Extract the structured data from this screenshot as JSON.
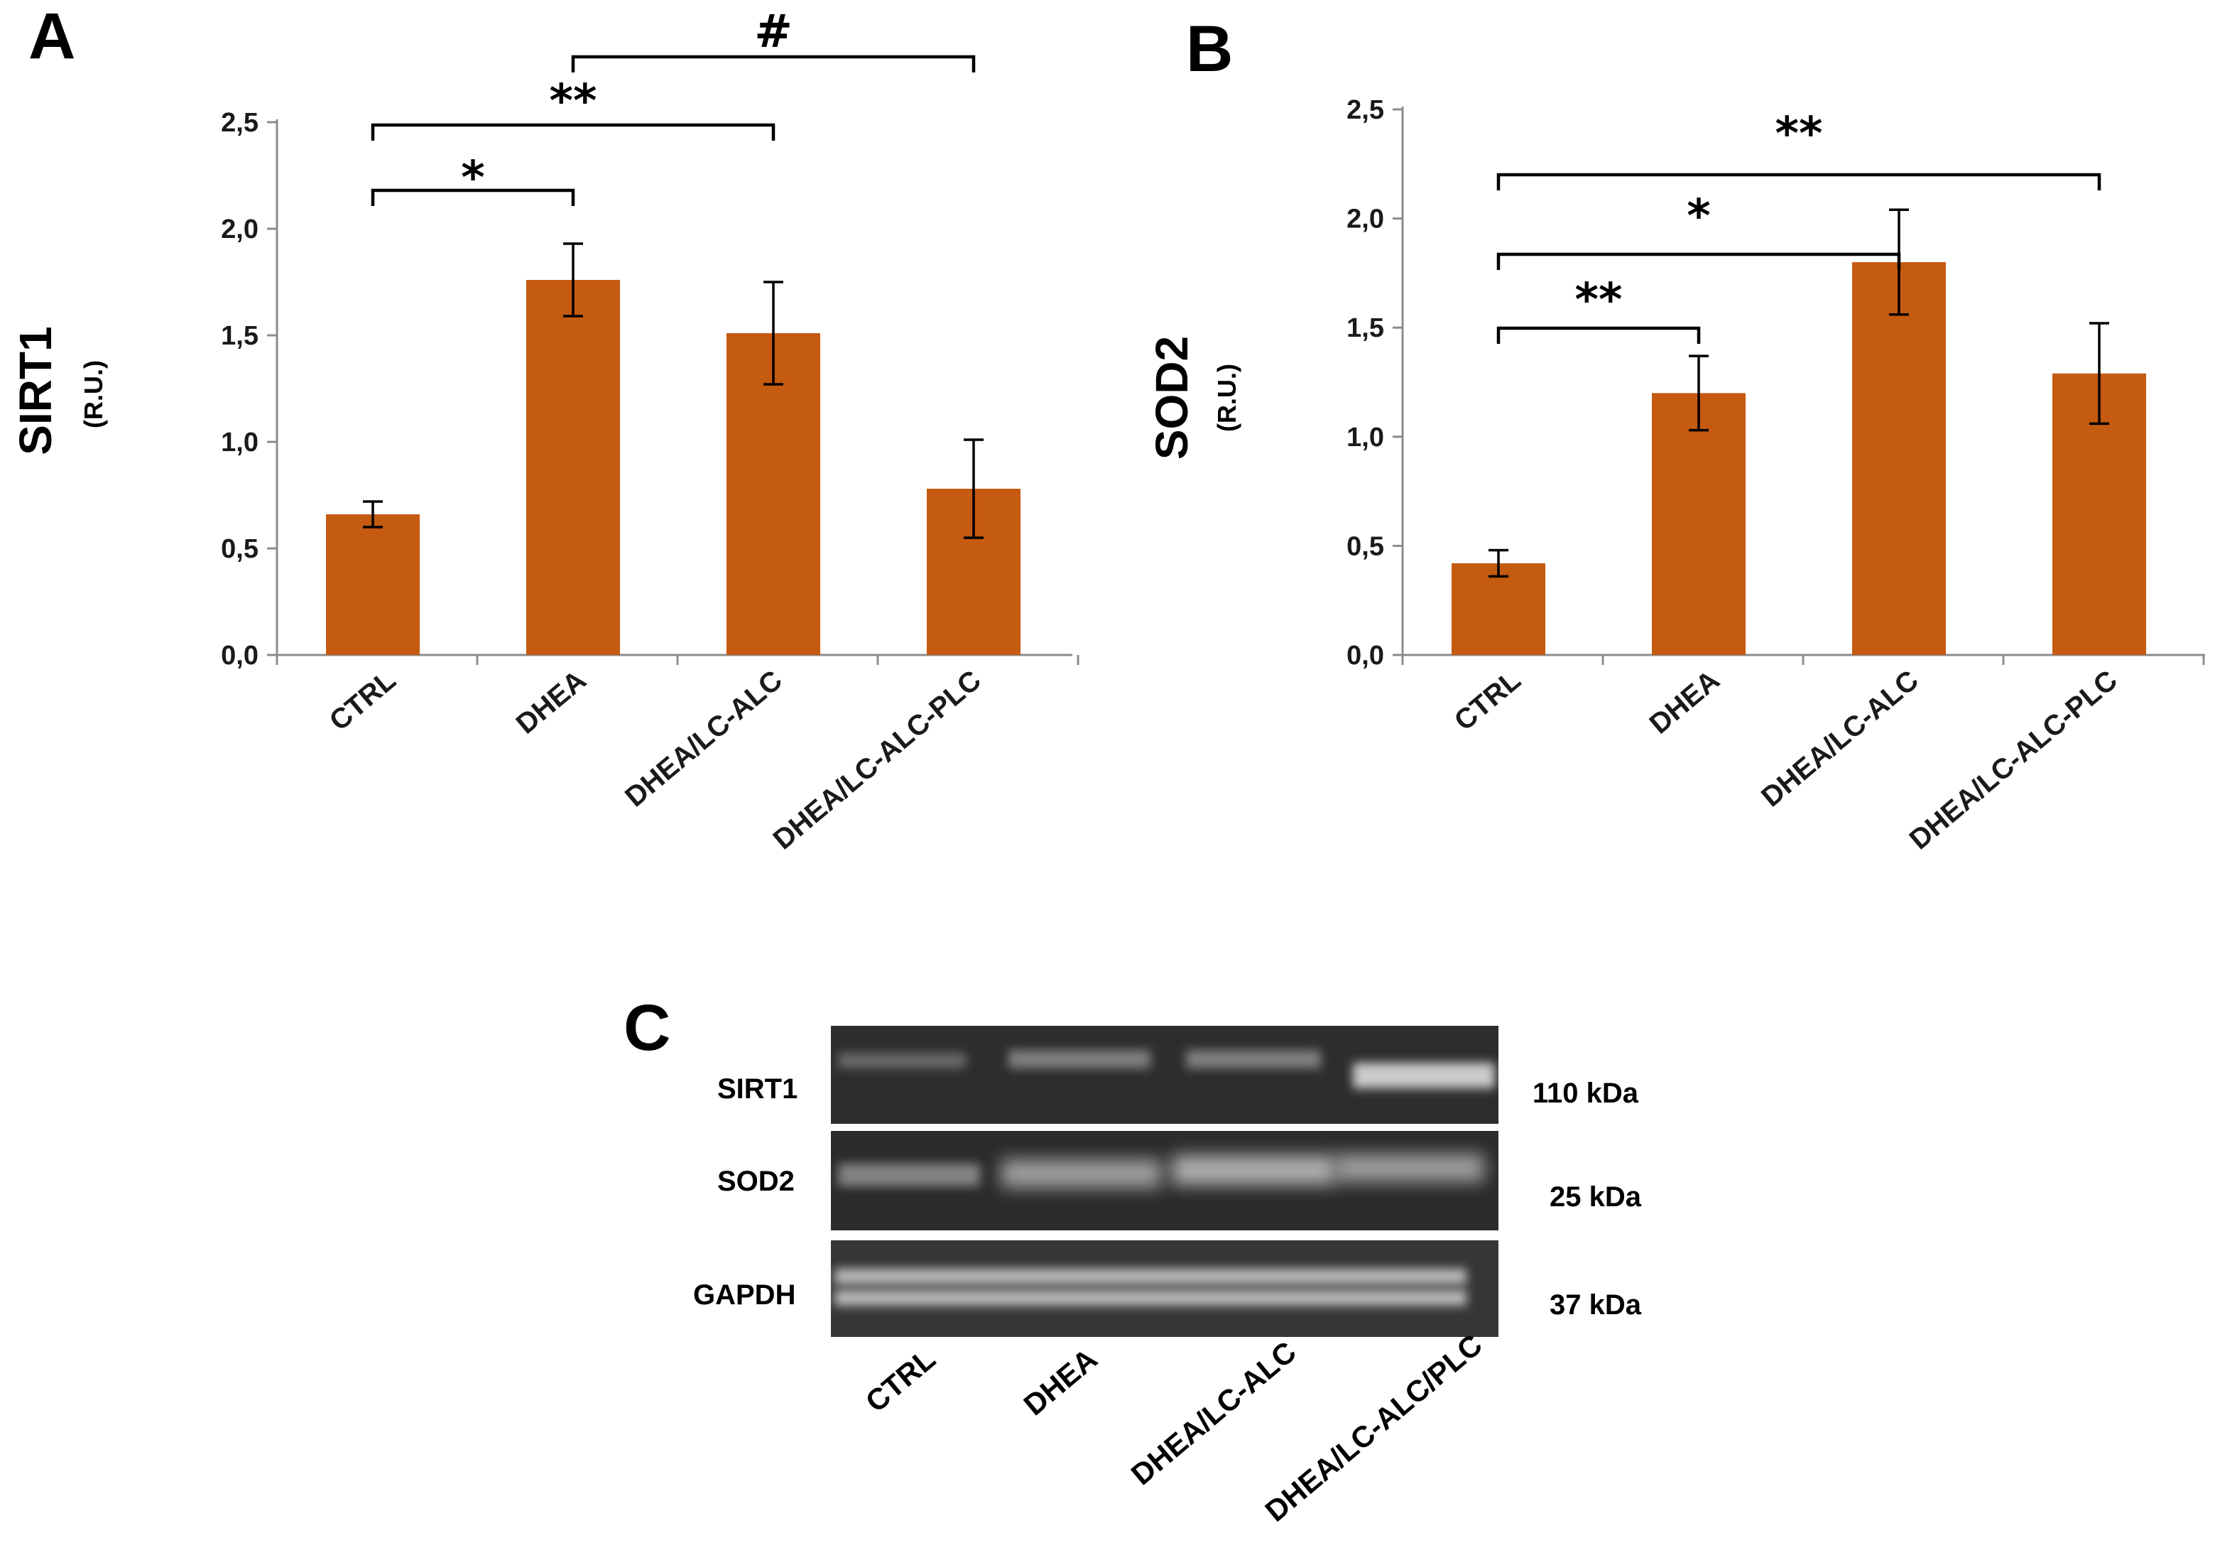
{
  "chart_data": [
    {
      "panel": "A",
      "type": "bar",
      "ylabel": "SIRT1",
      "yunit": "(R.U.)",
      "ylim": [
        0,
        2.5
      ],
      "yticks": [
        "0,0",
        "0,5",
        "1,0",
        "1,5",
        "2,0",
        "2,5"
      ],
      "categories": [
        "CTRL",
        "DHEA",
        "DHEA/LC-ALC",
        "DHEA/LC-ALC-PLC"
      ],
      "values": [
        0.66,
        1.76,
        1.51,
        0.78
      ],
      "errors": [
        0.06,
        0.17,
        0.24,
        0.23
      ],
      "color": "#c55a11",
      "significance": [
        {
          "from": 0,
          "to": 1,
          "label": "*"
        },
        {
          "from": 0,
          "to": 2,
          "label": "**"
        },
        {
          "from": 1,
          "to": 3,
          "label": "#"
        }
      ]
    },
    {
      "panel": "B",
      "type": "bar",
      "ylabel": "SOD2",
      "yunit": "(R.U.)",
      "ylim": [
        0,
        2.5
      ],
      "yticks": [
        "0,0",
        "0,5",
        "1,0",
        "1,5",
        "2,0",
        "2,5"
      ],
      "categories": [
        "CTRL",
        "DHEA",
        "DHEA/LC-ALC",
        "DHEA/LC-ALC-PLC"
      ],
      "values": [
        0.42,
        1.2,
        1.8,
        1.29
      ],
      "errors": [
        0.06,
        0.17,
        0.24,
        0.23
      ],
      "color": "#c55a11",
      "significance": [
        {
          "from": 0,
          "to": 1,
          "label": "**"
        },
        {
          "from": 0,
          "to": 2,
          "label": "*"
        },
        {
          "from": 0,
          "to": 3,
          "label": "**"
        }
      ]
    }
  ],
  "blot": {
    "panel": "C",
    "rows": [
      {
        "protein": "SIRT1",
        "size": "110 kDa"
      },
      {
        "protein": "SOD2",
        "size": "25 kDa"
      },
      {
        "protein": "GAPDH",
        "size": "37 kDa"
      }
    ],
    "lanes": [
      "CTRL",
      "DHEA",
      "DHEA/LC-ALC",
      "DHEA/LC-ALC/PLC"
    ]
  }
}
